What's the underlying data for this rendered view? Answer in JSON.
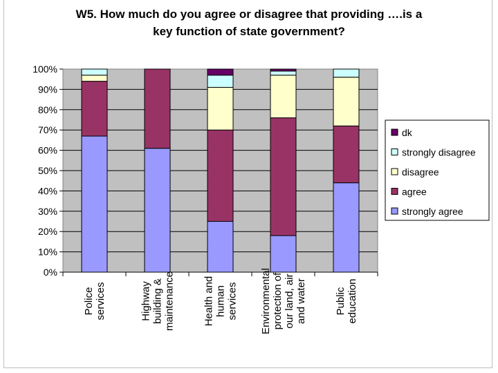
{
  "chart_data": {
    "type": "bar",
    "stacked": true,
    "percent": true,
    "title_lines": [
      "W5. How much do you agree or disagree that providing ….is a",
      "key function of state government?"
    ],
    "categories": [
      [
        "Police",
        "services"
      ],
      [
        "Highway",
        "building &",
        "maintenance"
      ],
      [
        "Health and",
        "human",
        "services"
      ],
      [
        "Environmental",
        "protection of",
        "our land, air",
        "and water"
      ],
      [
        "Public",
        "education"
      ]
    ],
    "series": [
      {
        "name": "strongly agree",
        "color": "#9999ff",
        "values": [
          67,
          61,
          25,
          18,
          44
        ]
      },
      {
        "name": "agree",
        "color": "#993366",
        "values": [
          27,
          39,
          45,
          58,
          28
        ]
      },
      {
        "name": "disagree",
        "color": "#ffffcc",
        "values": [
          3,
          0,
          21,
          21,
          24
        ]
      },
      {
        "name": "strongly disagree",
        "color": "#ccffff",
        "values": [
          3,
          0,
          6,
          2,
          4
        ]
      },
      {
        "name": "dk",
        "color": "#660066",
        "values": [
          0,
          0,
          3,
          1,
          0
        ]
      }
    ],
    "yticks": [
      "0%",
      "10%",
      "20%",
      "30%",
      "40%",
      "50%",
      "60%",
      "70%",
      "80%",
      "90%",
      "100%"
    ],
    "ylim": [
      0,
      100
    ],
    "grid": true,
    "legend_position": "right",
    "plot_background": "#c0c0c0"
  }
}
